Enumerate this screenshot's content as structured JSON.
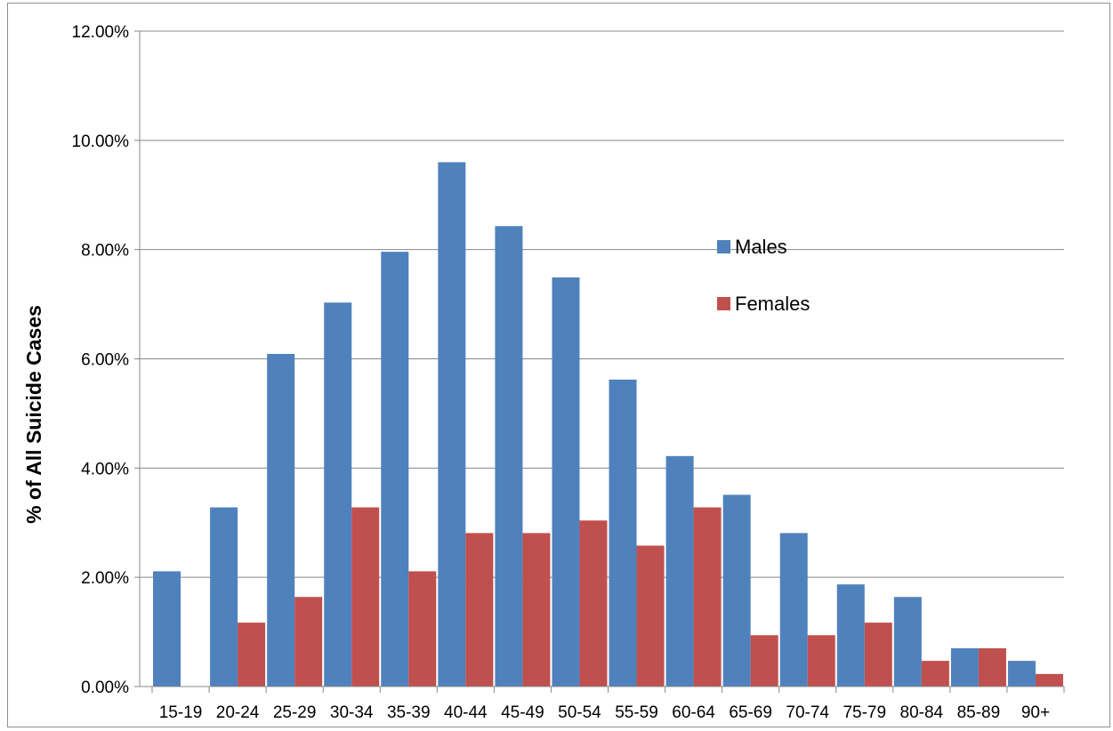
{
  "chart_data": {
    "type": "bar",
    "title": "",
    "xlabel": "",
    "ylabel": "% of All Suicide Cases",
    "categories": [
      "15-19",
      "20-24",
      "25-29",
      "30-34",
      "35-39",
      "40-44",
      "45-49",
      "50-54",
      "55-59",
      "60-64",
      "65-69",
      "70-74",
      "75-79",
      "80-84",
      "85-89",
      "90+"
    ],
    "series": [
      {
        "name": "Males",
        "color": "#4f81bd",
        "values": [
          2.11,
          3.28,
          6.09,
          7.03,
          7.96,
          9.6,
          8.43,
          7.49,
          5.62,
          4.22,
          3.51,
          2.81,
          1.87,
          1.64,
          0.7,
          0.47
        ]
      },
      {
        "name": "Females",
        "color": "#c0504d",
        "values": [
          0.0,
          1.17,
          1.64,
          3.28,
          2.11,
          2.81,
          2.81,
          3.04,
          2.58,
          3.28,
          0.94,
          0.94,
          1.17,
          0.47,
          0.7,
          0.23
        ]
      }
    ],
    "ylim": [
      0,
      12
    ],
    "yticks": [
      "0.00%",
      "2.00%",
      "4.00%",
      "6.00%",
      "8.00%",
      "10.00%",
      "12.00%"
    ],
    "ytick_values": [
      0,
      2,
      4,
      6,
      8,
      10,
      12
    ],
    "grid": true,
    "legend_position": "inside-right"
  }
}
